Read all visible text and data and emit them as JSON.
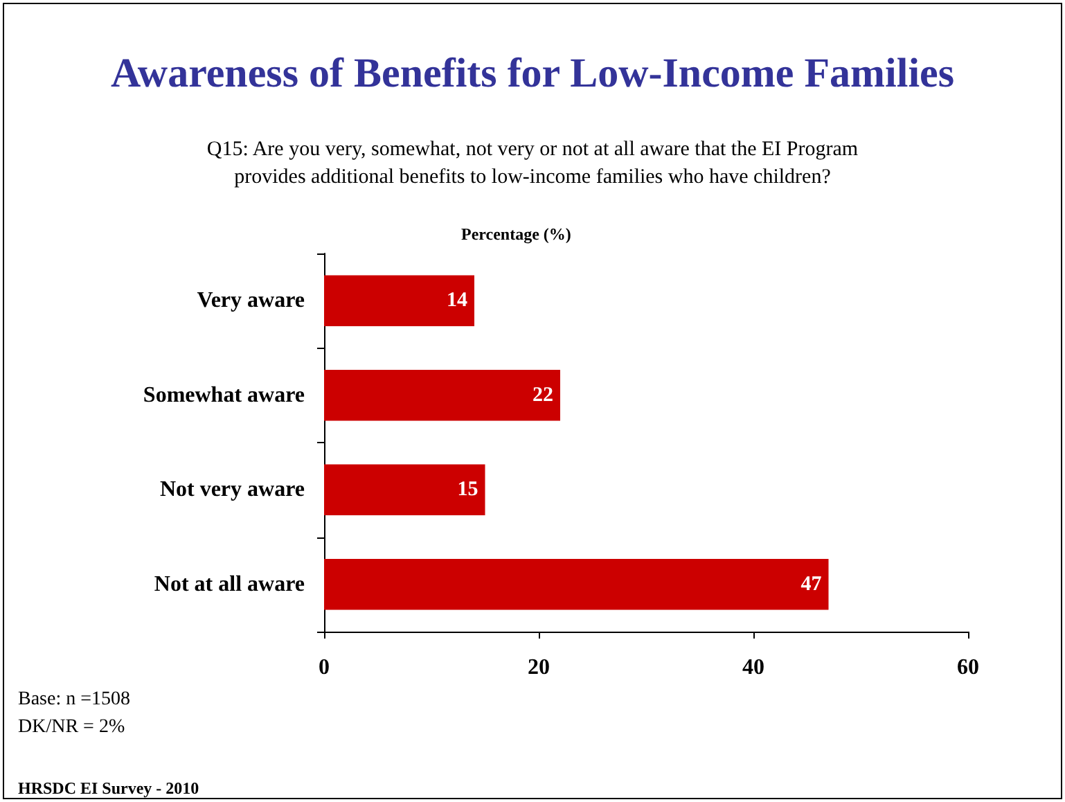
{
  "chart_data": {
    "type": "bar",
    "orientation": "horizontal",
    "title": "Awareness of Benefits for Low-Income Families",
    "subtitle": "Q15: Are you very, somewhat, not very or not at all aware that the EI Program\nprovides additional benefits to low-income families who have children?",
    "xlabel": "Percentage (%)",
    "categories": [
      "Very aware",
      "Somewhat aware",
      "Not very aware",
      "Not at all aware"
    ],
    "values": [
      14,
      22,
      15,
      47
    ],
    "color": "#cc0000",
    "xlim": [
      0,
      60
    ],
    "xticks": [
      0,
      20,
      40,
      60
    ],
    "data_labels": true,
    "annotations": [
      "Base: n =1508",
      "DK/NR = 2%",
      "HRSDC EI Survey - 2010"
    ]
  }
}
